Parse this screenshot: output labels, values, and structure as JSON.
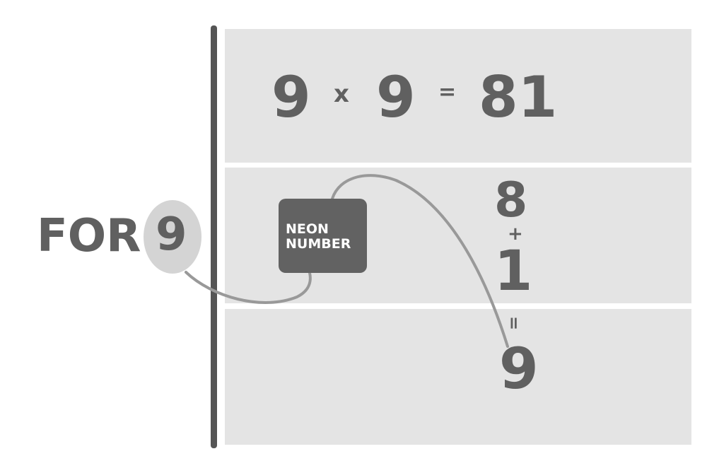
{
  "left": {
    "label": "FOR",
    "number": "9"
  },
  "equation": {
    "a": "9",
    "op": "x",
    "b": "9",
    "eq": "=",
    "result": "81"
  },
  "box": {
    "label": "NEON\nNUMBER"
  },
  "digits": {
    "d1": "8",
    "plus": "+",
    "d2": "1",
    "equals": "=",
    "sum": "9"
  },
  "colors": {
    "panel": "#e4e4e4",
    "text": "#606060",
    "box": "#626262",
    "line": "#999999",
    "circle": "#d4d4d4"
  }
}
